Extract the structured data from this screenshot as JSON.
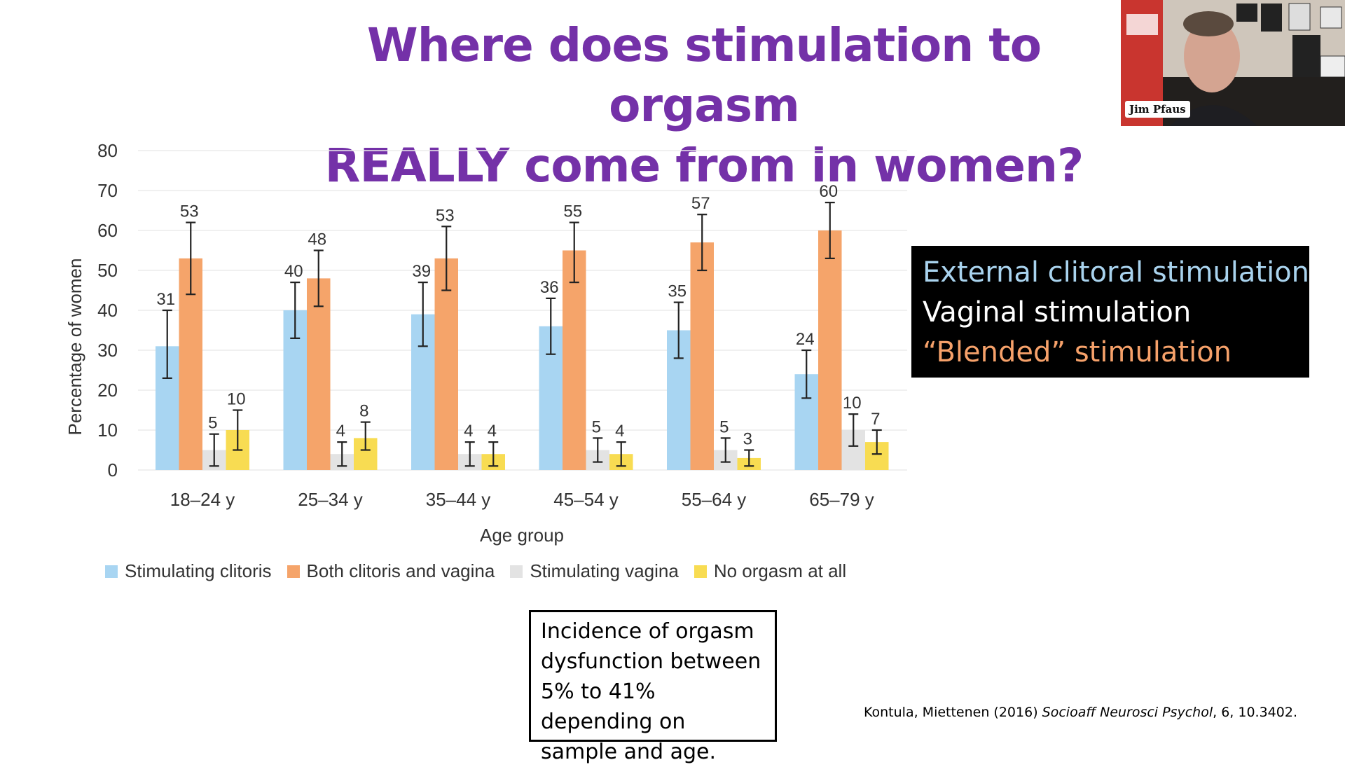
{
  "slide": {
    "title_line1": "Where does stimulation to orgasm",
    "title_line2": "REALLY come from in women?",
    "webcam_name": "Jim Pfaus"
  },
  "callout": {
    "lines": [
      {
        "text": "External clitoral stimulation",
        "color": "#a9d3ee"
      },
      {
        "text": "Vaginal stimulation",
        "color": "#ffffff"
      },
      {
        "text": "“Blended” stimulation",
        "color": "#f6a16a"
      }
    ]
  },
  "note": {
    "text": "Incidence of orgasm dysfunction between 5% to 41% depending on sample and age."
  },
  "citation": {
    "prefix": "Kontula, Miettenen (2016) ",
    "journal": "Socioaff Neurosci Psychol",
    "suffix": ", 6, 10.3402."
  },
  "chart_data": {
    "type": "bar",
    "xlabel": "Age group",
    "ylabel": "Percentage of women",
    "ylim": [
      0,
      80
    ],
    "yticks": [
      0,
      10,
      20,
      30,
      40,
      50,
      60,
      70,
      80
    ],
    "grid": true,
    "legend_position": "bottom",
    "categories": [
      "18–24 y",
      "25–34 y",
      "35–44 y",
      "45–54 y",
      "55–64 y",
      "65–79 y"
    ],
    "series": [
      {
        "name": "Stimulating clitoris",
        "color": "#a8d5f2",
        "values": [
          31,
          40,
          39,
          36,
          35,
          24
        ],
        "err_low": [
          23,
          33,
          31,
          29,
          28,
          18
        ],
        "err_high": [
          40,
          47,
          47,
          43,
          42,
          30
        ]
      },
      {
        "name": "Both clitoris and vagina",
        "color": "#f5a46a",
        "values": [
          53,
          48,
          53,
          55,
          57,
          60
        ],
        "err_low": [
          44,
          41,
          45,
          47,
          50,
          53
        ],
        "err_high": [
          62,
          55,
          61,
          62,
          64,
          67
        ]
      },
      {
        "name": "Stimulating vagina",
        "color": "#e3e3e3",
        "values": [
          5,
          4,
          4,
          5,
          5,
          10
        ],
        "err_low": [
          1,
          1,
          1,
          2,
          2,
          6
        ],
        "err_high": [
          9,
          7,
          7,
          8,
          8,
          14
        ]
      },
      {
        "name": "No orgasm at all",
        "color": "#f8dc52",
        "values": [
          10,
          8,
          4,
          4,
          3,
          7
        ],
        "err_low": [
          5,
          5,
          1,
          1,
          1,
          4
        ],
        "err_high": [
          15,
          12,
          7,
          7,
          5,
          10
        ]
      }
    ]
  }
}
